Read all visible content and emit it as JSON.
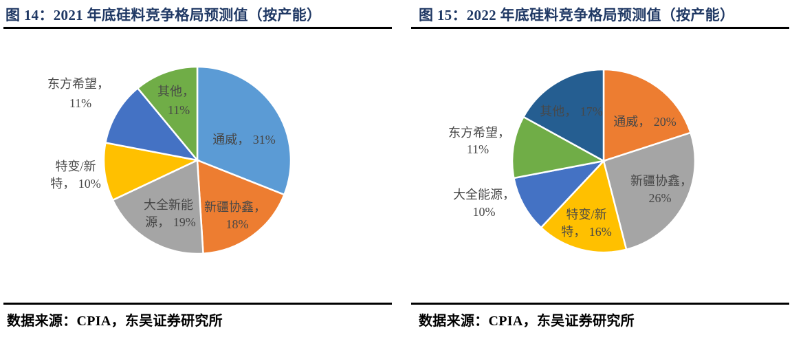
{
  "styles": {
    "background": "#FFFFFF",
    "title_color": "#1F3864",
    "label_color": "#474747",
    "rule_color": "#000000",
    "slice_border_color": "#FFFFFF"
  },
  "chart_data": [
    {
      "type": "pie",
      "figure_label": "图 14",
      "title": "图 14：2021 年底硅料竞争格局预测值（按产能）",
      "source_note": "数据来源：CPIA，东吴证券研究所",
      "legend": "none",
      "start_angle_deg": 0,
      "direction": "clockwise",
      "categories": [
        "通威",
        "新疆协鑫",
        "大全新能源",
        "特变/新特",
        "东方希望",
        "其他"
      ],
      "values": [
        31,
        18,
        19,
        10,
        11,
        11
      ],
      "colors": [
        "#5B9BD5",
        "#ED7D31",
        "#A5A5A5",
        "#FFC000",
        "#4472C4",
        "#70AD47"
      ],
      "slices": [
        {
          "name": "通威",
          "value": 31,
          "label_position": "inside",
          "label_lines": [
            "通威， 31%"
          ]
        },
        {
          "name": "新疆协鑫",
          "value": 18,
          "label_position": "inside",
          "label_lines": [
            "新疆协鑫，",
            "18%"
          ]
        },
        {
          "name": "大全新能源",
          "value": 19,
          "label_position": "inside",
          "label_lines": [
            "大全新能",
            "源， 19%"
          ]
        },
        {
          "name": "特变/新特",
          "value": 10,
          "label_position": "outside",
          "label_lines": [
            "特变/新",
            "特， 10%"
          ]
        },
        {
          "name": "东方希望",
          "value": 11,
          "label_position": "outside",
          "label_lines": [
            "东方希望，",
            "11%"
          ]
        },
        {
          "name": "其他",
          "value": 11,
          "label_position": "inside",
          "label_lines": [
            "其他，",
            "11%"
          ]
        }
      ]
    },
    {
      "type": "pie",
      "figure_label": "图 15",
      "title": "图 15：2022 年底硅料竞争格局预测值（按产能）",
      "source_note": "数据来源：CPIA，东吴证券研究所",
      "legend": "none",
      "start_angle_deg": 0,
      "direction": "clockwise",
      "categories": [
        "通威",
        "新疆协鑫",
        "特变/新特",
        "大全能源",
        "东方希望",
        "其他"
      ],
      "values": [
        20,
        26,
        16,
        10,
        11,
        17
      ],
      "colors": [
        "#ED7D31",
        "#A5A5A5",
        "#FFC000",
        "#4472C4",
        "#70AD47",
        "#255E91"
      ],
      "slices": [
        {
          "name": "通威",
          "value": 20,
          "label_position": "inside",
          "label_lines": [
            "通威， 20%"
          ]
        },
        {
          "name": "新疆协鑫",
          "value": 26,
          "label_position": "inside",
          "label_lines": [
            "新疆协鑫，",
            "26%"
          ]
        },
        {
          "name": "特变/新特",
          "value": 16,
          "label_position": "inside",
          "label_lines": [
            "特变/新",
            "特， 16%"
          ]
        },
        {
          "name": "大全能源",
          "value": 10,
          "label_position": "outside",
          "label_lines": [
            "大全能源，",
            "10%"
          ]
        },
        {
          "name": "东方希望",
          "value": 11,
          "label_position": "outside",
          "label_lines": [
            "东方希望，",
            "11%"
          ]
        },
        {
          "name": "其他",
          "value": 17,
          "label_position": "inside",
          "label_lines": [
            "其他， 17%"
          ]
        }
      ]
    }
  ]
}
